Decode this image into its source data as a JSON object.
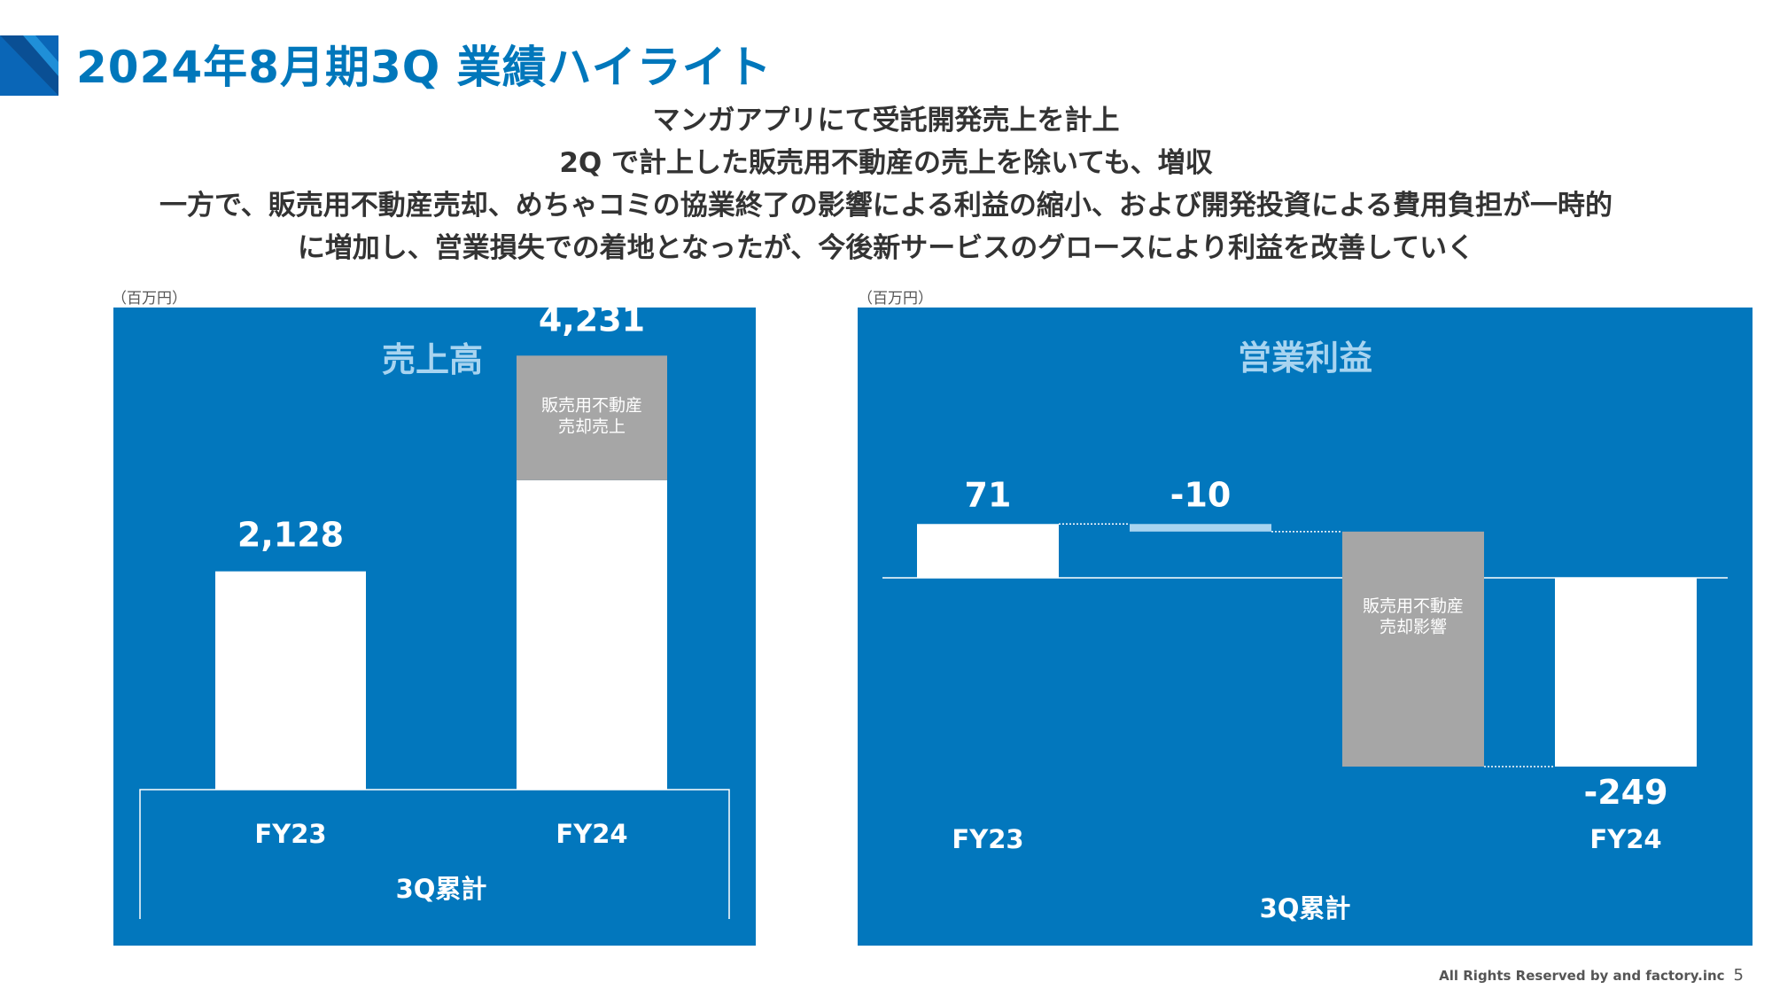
{
  "header": {
    "title": "2024年8月期3Q 業績ハイライト",
    "accent_color": "#0a66b7"
  },
  "summary": {
    "lines": [
      "マンガアプリにて受託開発売上を計上",
      "2Q で計上した販売用不動産の売上を除いても、増収",
      "一方で、販売用不動産売却、めちゃコミの協業終了の影響による利益の縮小、および開発投資による費用負担が一時的",
      "に増加し、営業損失での着地となったが、今後新サービスのグロースにより利益を改善していく"
    ]
  },
  "colors": {
    "panel_bg": "#0277bd",
    "bar_main": "#ffffff",
    "bar_special": "#a6a6a6",
    "bar_small": "#a8d4f0"
  },
  "chart_data": [
    {
      "type": "bar",
      "title": "売上高",
      "unit": "（百万円）",
      "categories": [
        "FY23",
        "FY24"
      ],
      "group_label": "3Q累計",
      "ylim": [
        0,
        4700
      ],
      "series": [
        {
          "name": "",
          "values": [
            2128,
            3016
          ]
        },
        {
          "name": "販売用不動産売却売上",
          "values": [
            0,
            1215
          ]
        }
      ],
      "totals": [
        "2,128",
        "4,231"
      ],
      "segment_label": "販売用不動産\n売却売上"
    },
    {
      "type": "waterfall",
      "title": "営業利益",
      "unit": "（百万円）",
      "group_label": "3Q累計",
      "steps": [
        {
          "label": "FY23",
          "kind": "total",
          "value": 71,
          "display": "71"
        },
        {
          "label": "",
          "kind": "delta",
          "value": -10,
          "display": "-10"
        },
        {
          "label": "",
          "kind": "delta",
          "value": -310,
          "display": "",
          "segment_label": "販売用不動産\n売却影響"
        },
        {
          "label": "FY24",
          "kind": "total",
          "value": -249,
          "display": "-249"
        }
      ]
    }
  ],
  "footer": {
    "copyright": "All Rights Reserved by and factory.inc",
    "page_number": "5"
  }
}
